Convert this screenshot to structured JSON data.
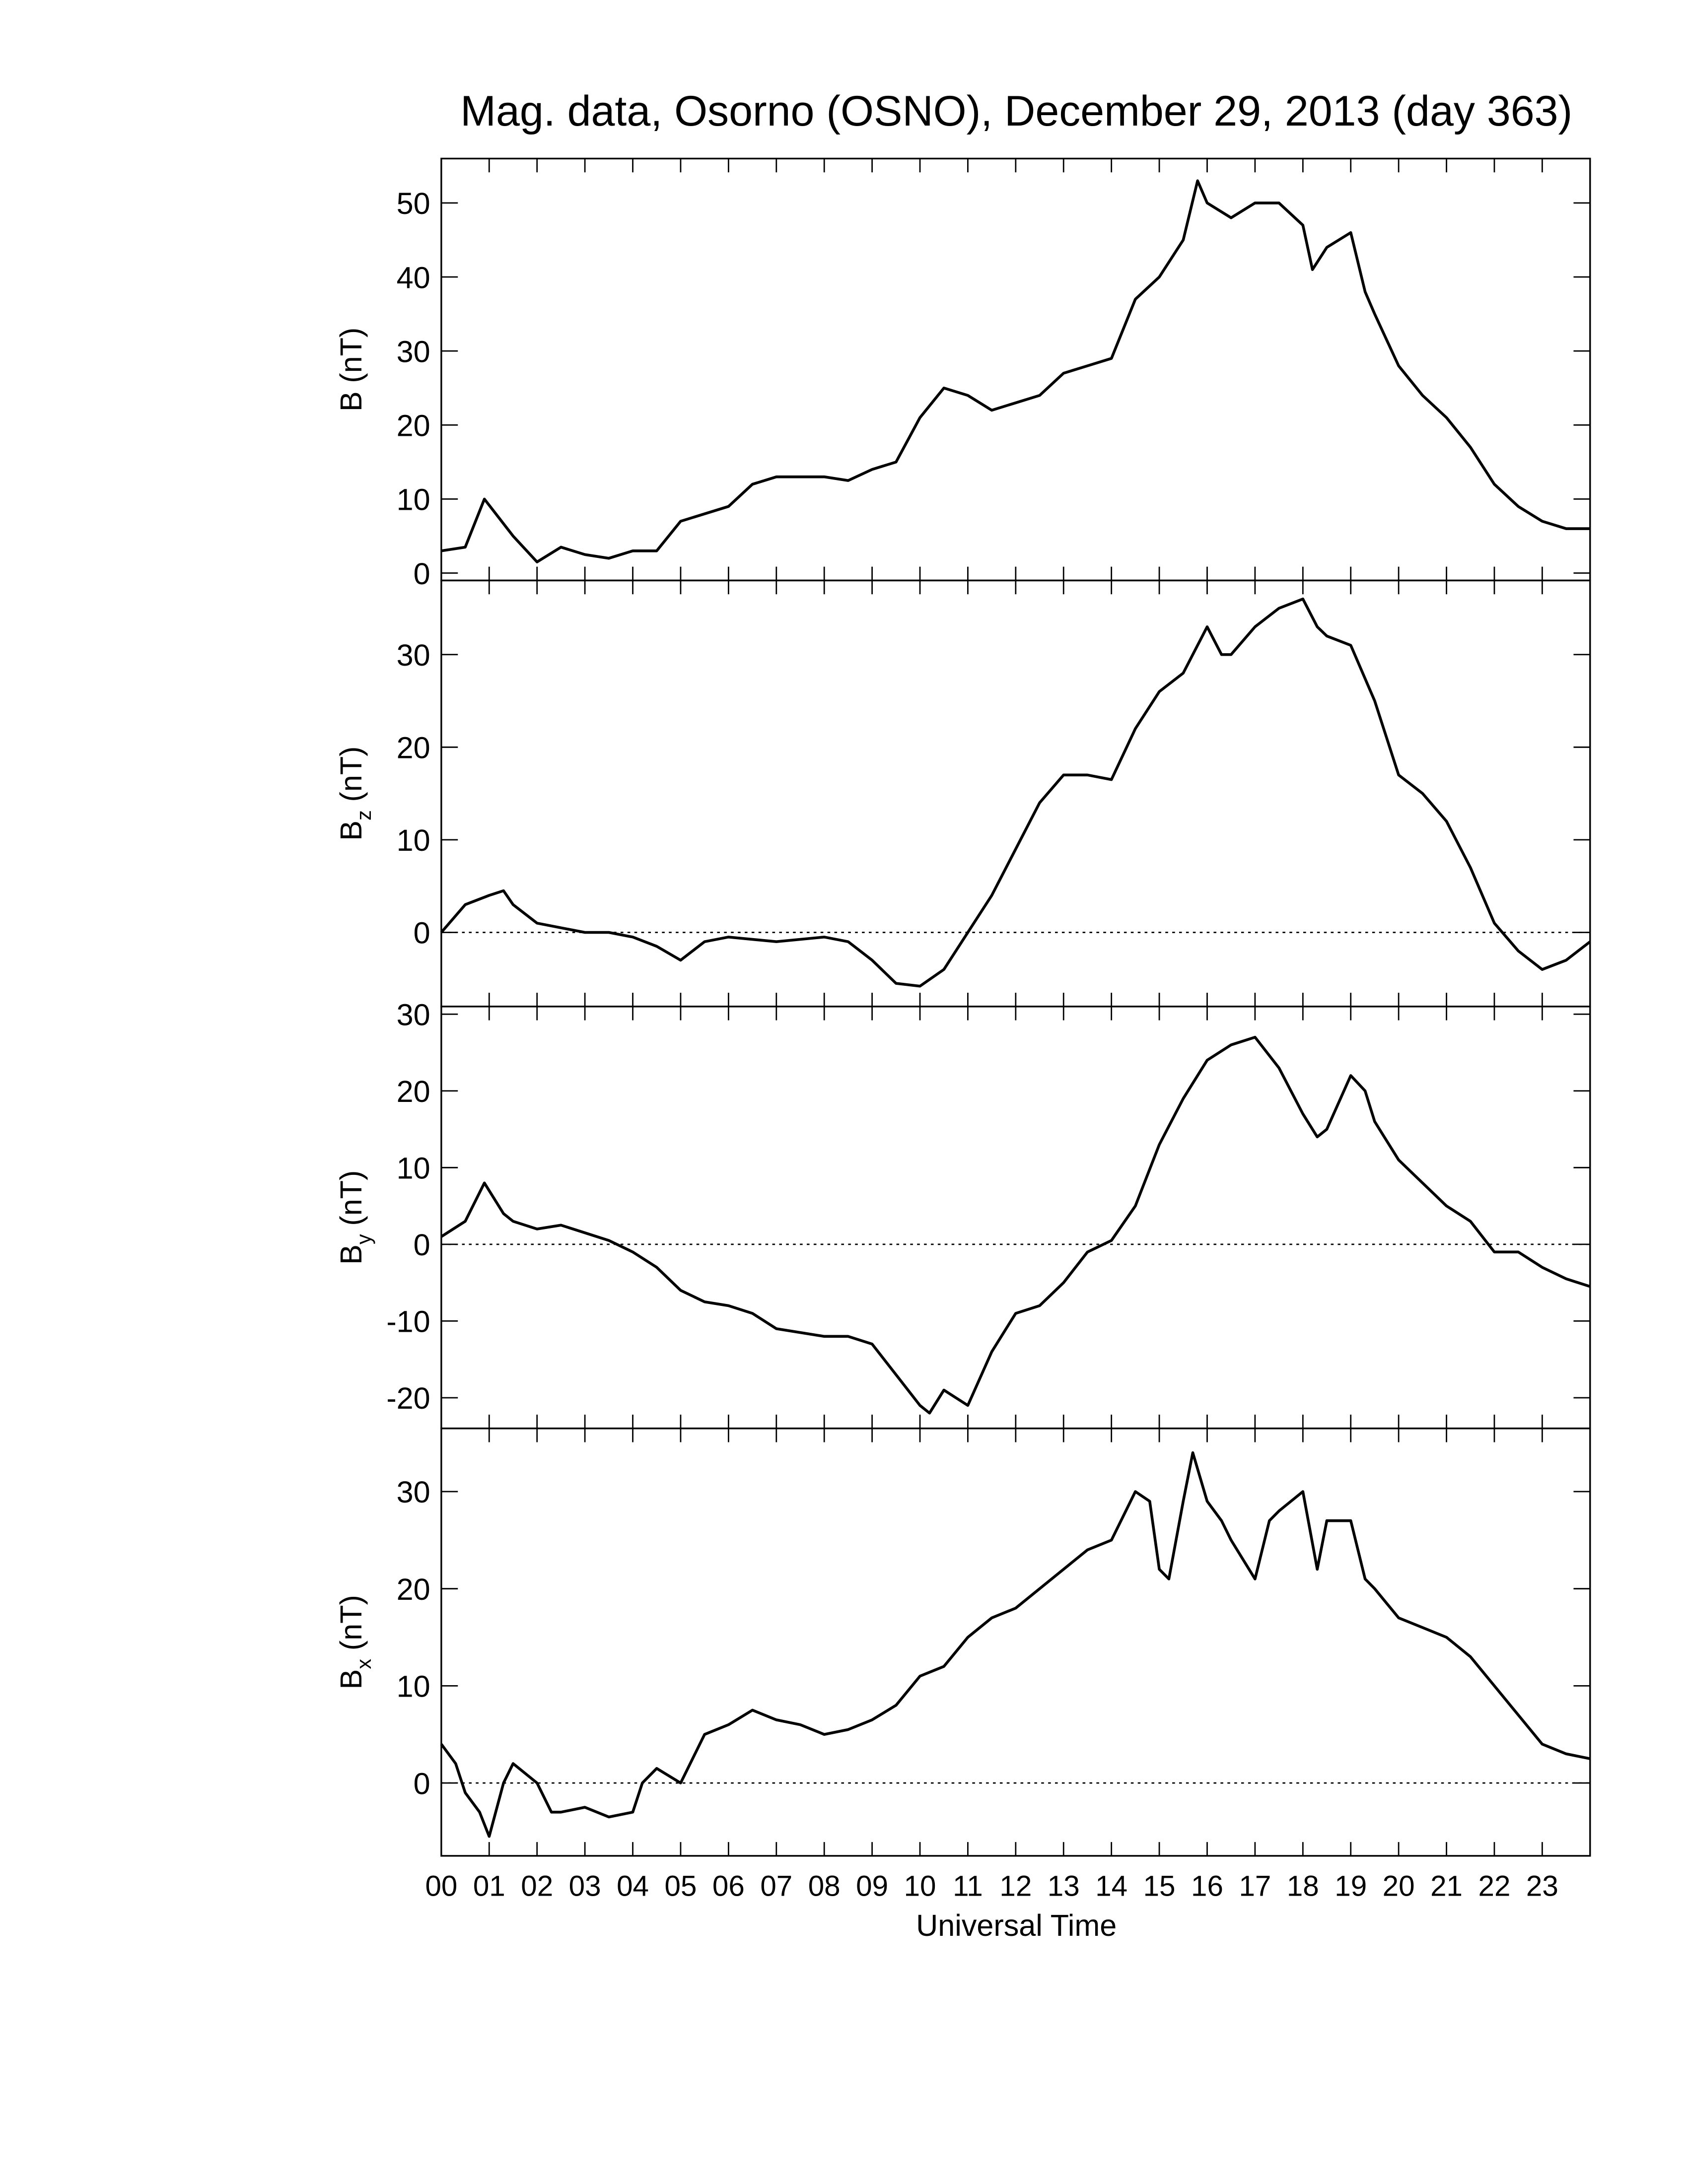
{
  "chart_data": [
    {
      "type": "line",
      "title": "Mag. data, Osorno (OSNO), December 29, 2013 (day 363)",
      "ylabel": "B",
      "ylabel_unit": "(nT)",
      "color": "#000000",
      "zero_line": false,
      "ylim": [
        -1,
        56
      ],
      "yticks": [
        0,
        10,
        20,
        30,
        40,
        50
      ],
      "xlim": [
        0,
        24
      ],
      "x": [
        0,
        0.5,
        0.9,
        1.5,
        2,
        2.5,
        3,
        3.5,
        4,
        4.5,
        5,
        6,
        6.5,
        7,
        8,
        8.5,
        9,
        9.5,
        10,
        10.5,
        11,
        11.5,
        12,
        12.5,
        13,
        13.5,
        14,
        14.5,
        15,
        15.5,
        15.8,
        16,
        16.5,
        17,
        17.5,
        18,
        18.2,
        18.5,
        19,
        19.3,
        19.5,
        20,
        20.5,
        21,
        21.5,
        22,
        22.5,
        23,
        23.5,
        24
      ],
      "values": [
        3,
        3.5,
        10,
        5,
        1.5,
        3.5,
        2.5,
        2,
        3,
        3,
        7,
        9,
        12,
        13,
        13,
        12.5,
        14,
        15,
        21,
        25,
        24,
        22,
        23,
        24,
        27,
        28,
        29,
        37,
        40,
        45,
        53,
        50,
        48,
        50,
        50,
        47,
        41,
        44,
        46,
        38,
        35,
        28,
        24,
        21,
        17,
        12,
        9,
        7,
        6,
        6
      ]
    },
    {
      "type": "line",
      "ylabel": "B",
      "ylabel_sub": "z",
      "ylabel_unit": "(nT)",
      "color": "#000000",
      "zero_line": true,
      "ylim": [
        -8,
        38
      ],
      "yticks": [
        0,
        10,
        20,
        30
      ],
      "xlim": [
        0,
        24
      ],
      "x": [
        0,
        0.5,
        1,
        1.3,
        1.5,
        2,
        2.5,
        3,
        3.5,
        4,
        4.5,
        5,
        5.5,
        6,
        7,
        8,
        8.5,
        9,
        9.5,
        10,
        10.5,
        11,
        11.5,
        12,
        12.5,
        13,
        13.5,
        14,
        14.5,
        15,
        15.5,
        16,
        16.3,
        16.5,
        17,
        17.5,
        18,
        18.3,
        18.5,
        19,
        19.5,
        20,
        20.5,
        21,
        21.5,
        22,
        22.5,
        23,
        23.5,
        24
      ],
      "values": [
        0,
        3,
        4,
        4.5,
        3,
        1,
        0.5,
        0,
        0,
        -0.5,
        -1.5,
        -3,
        -1,
        -0.5,
        -1,
        -0.5,
        -1,
        -3,
        -5.5,
        -5.8,
        -4,
        0,
        4,
        9,
        14,
        17,
        17,
        16.5,
        22,
        26,
        28,
        33,
        30,
        30,
        33,
        35,
        36,
        33,
        32,
        31,
        25,
        17,
        15,
        12,
        7,
        1,
        -2,
        -4,
        -3,
        -1
      ]
    },
    {
      "type": "line",
      "ylabel": "B",
      "ylabel_sub": "y",
      "ylabel_unit": "(nT)",
      "color": "#000000",
      "zero_line": true,
      "ylim": [
        -24,
        31
      ],
      "yticks": [
        -20,
        -10,
        0,
        10,
        20,
        30
      ],
      "xlim": [
        0,
        24
      ],
      "x": [
        0,
        0.5,
        0.9,
        1.3,
        1.5,
        2,
        2.5,
        3,
        3.5,
        4,
        4.5,
        5,
        5.5,
        6,
        6.5,
        7,
        7.5,
        8,
        8.5,
        9,
        9.5,
        10,
        10.2,
        10.5,
        11,
        11.5,
        12,
        12.5,
        13,
        13.5,
        14,
        14.5,
        15,
        15.5,
        16,
        16.5,
        17,
        17.5,
        18,
        18.3,
        18.5,
        19,
        19.3,
        19.5,
        20,
        20.5,
        21,
        21.5,
        22,
        22.5,
        23,
        23.5,
        24
      ],
      "values": [
        1,
        3,
        8,
        4,
        3,
        2,
        2.5,
        1.5,
        0.5,
        -1,
        -3,
        -6,
        -7.5,
        -8,
        -9,
        -11,
        -11.5,
        -12,
        -12,
        -13,
        -17,
        -21,
        -22,
        -19,
        -21,
        -14,
        -9,
        -8,
        -5,
        -1,
        0.5,
        5,
        13,
        19,
        24,
        26,
        27,
        23,
        17,
        14,
        15,
        22,
        20,
        16,
        11,
        8,
        5,
        3,
        -1,
        -1,
        -3,
        -4.5,
        -5.5
      ]
    },
    {
      "type": "line",
      "ylabel": "B",
      "ylabel_sub": "x",
      "ylabel_unit": "(nT)",
      "color": "#000000",
      "zero_line": true,
      "xlabel": "Universal Time",
      "ylim": [
        -7.5,
        36.5
      ],
      "yticks": [
        0,
        10,
        20,
        30
      ],
      "xlim": [
        0,
        24
      ],
      "xticks": [
        {
          "value": 0,
          "label": "00"
        },
        {
          "value": 1,
          "label": "01"
        },
        {
          "value": 2,
          "label": "02"
        },
        {
          "value": 3,
          "label": "03"
        },
        {
          "value": 4,
          "label": "04"
        },
        {
          "value": 5,
          "label": "05"
        },
        {
          "value": 6,
          "label": "06"
        },
        {
          "value": 7,
          "label": "07"
        },
        {
          "value": 8,
          "label": "08"
        },
        {
          "value": 9,
          "label": "09"
        },
        10,
        11,
        12,
        13,
        14,
        15,
        16,
        17,
        18,
        19,
        20,
        21,
        22,
        23
      ],
      "x": [
        0,
        0.3,
        0.5,
        0.8,
        1,
        1.3,
        1.5,
        2,
        2.3,
        2.5,
        3,
        3.5,
        4,
        4.2,
        4.5,
        5,
        5.5,
        6,
        6.5,
        7,
        7.5,
        8,
        8.5,
        9,
        9.5,
        10,
        10.5,
        11,
        11.5,
        12,
        12.5,
        13,
        13.5,
        14,
        14.5,
        14.8,
        15,
        15.2,
        15.5,
        15.7,
        16,
        16.3,
        16.5,
        17,
        17.3,
        17.5,
        18,
        18.3,
        18.5,
        19,
        19.3,
        19.5,
        20,
        20.5,
        21,
        21.5,
        22,
        22.5,
        23,
        23.5,
        24
      ],
      "values": [
        4,
        2,
        -1,
        -3,
        -5.5,
        0,
        2,
        0,
        -3,
        -3,
        -2.5,
        -3.5,
        -3,
        0,
        1.5,
        0,
        5,
        6,
        7.5,
        6.5,
        6,
        5,
        5.5,
        6.5,
        8,
        11,
        12,
        15,
        17,
        18,
        20,
        22,
        24,
        25,
        30,
        29,
        22,
        21,
        29,
        34,
        29,
        27,
        25,
        21,
        27,
        28,
        30,
        22,
        27,
        27,
        21,
        20,
        17,
        16,
        15,
        13,
        10,
        7,
        4,
        3,
        2.5
      ]
    }
  ]
}
